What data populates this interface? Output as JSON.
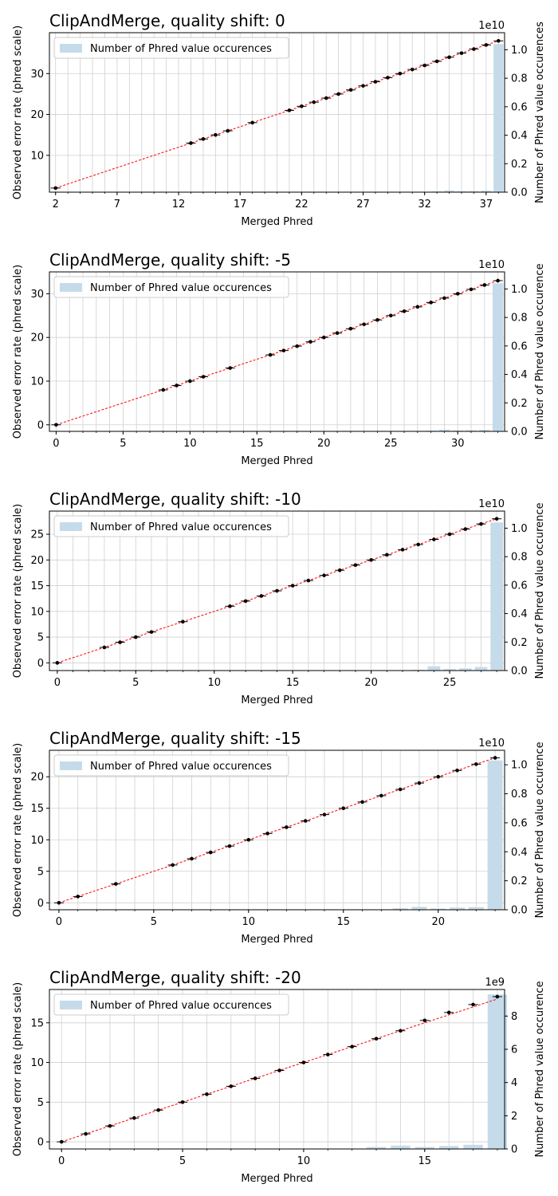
{
  "colors": {
    "bar": "#c6dbea",
    "fit_line": "#ff0000",
    "points": "#000000",
    "grid": "#d0d0d0"
  },
  "chart_data": [
    {
      "type": "bar+scatter",
      "title": "ClipAndMerge, quality shift: 0",
      "xlabel": "Merged Phred",
      "ylabel": "Observed error rate (phred scale)",
      "y2label": "Number of Phred value occurences",
      "legend": "Number of Phred value occurences",
      "legend_position": "upper-left",
      "grid": true,
      "xlim": [
        1.5,
        38.5
      ],
      "ylim": [
        1,
        40
      ],
      "y2lim": [
        0,
        1.12
      ],
      "y2_offset_text": "1e10",
      "xticks": [
        2,
        7,
        12,
        17,
        22,
        27,
        32,
        37
      ],
      "xgrid": [
        2,
        3,
        4,
        5,
        6,
        7,
        8,
        9,
        10,
        11,
        12,
        13,
        14,
        15,
        16,
        17,
        18,
        19,
        20,
        21,
        22,
        23,
        24,
        25,
        26,
        27,
        28,
        29,
        30,
        31,
        32,
        33,
        34,
        35,
        36,
        37,
        38
      ],
      "yticks": [
        10,
        20,
        30
      ],
      "y2ticks": [
        "0.0",
        "0.2",
        "0.4",
        "0.6",
        "0.8",
        "1.0"
      ],
      "points": {
        "x": [
          2,
          13,
          14,
          15,
          16,
          18,
          21,
          22,
          23,
          24,
          25,
          26,
          27,
          28,
          29,
          30,
          31,
          32,
          33,
          34,
          35,
          36,
          37,
          38
        ],
        "y": [
          2,
          13,
          14,
          15,
          16,
          18,
          21,
          22,
          23,
          24,
          25,
          26,
          27,
          28,
          29,
          30,
          31,
          32,
          33,
          34,
          35,
          36,
          37,
          38
        ]
      },
      "fit_line": [
        [
          2,
          2
        ],
        [
          38,
          38
        ]
      ],
      "bars": {
        "x": [
          33,
          34,
          35,
          36,
          37,
          38
        ],
        "values": [
          0.005,
          0.012,
          0.006,
          0.007,
          0.01,
          1.04
        ]
      }
    },
    {
      "type": "bar+scatter",
      "title": "ClipAndMerge, quality shift: -5",
      "xlabel": "Merged Phred",
      "ylabel": "Observed error rate (phred scale)",
      "y2label": "Number of Phred value occurence",
      "legend": "Number of Phred value occurences",
      "legend_position": "upper-left",
      "grid": true,
      "xlim": [
        -0.5,
        33.5
      ],
      "ylim": [
        -1.5,
        35
      ],
      "y2lim": [
        0,
        1.12
      ],
      "y2_offset_text": "1e10",
      "xticks": [
        0,
        5,
        10,
        15,
        20,
        25,
        30
      ],
      "xgrid": [
        0,
        1,
        2,
        3,
        4,
        5,
        6,
        7,
        8,
        9,
        10,
        11,
        12,
        13,
        14,
        15,
        16,
        17,
        18,
        19,
        20,
        21,
        22,
        23,
        24,
        25,
        26,
        27,
        28,
        29,
        30,
        31,
        32,
        33
      ],
      "yticks": [
        0,
        10,
        20,
        30
      ],
      "y2ticks": [
        "0.0",
        "0.2",
        "0.4",
        "0.6",
        "0.8",
        "1.0"
      ],
      "points": {
        "x": [
          0,
          8,
          9,
          10,
          11,
          13,
          16,
          17,
          18,
          19,
          20,
          21,
          22,
          23,
          24,
          25,
          26,
          27,
          28,
          29,
          30,
          31,
          32,
          33
        ],
        "y": [
          0,
          8,
          9,
          10,
          11,
          13,
          16,
          17,
          18,
          19,
          20,
          21,
          22,
          23,
          24,
          25,
          26,
          27,
          28,
          29,
          30,
          31,
          32,
          33
        ]
      },
      "fit_line": [
        [
          0,
          0
        ],
        [
          33,
          33
        ]
      ],
      "bars": {
        "x": [
          28,
          29,
          30,
          31,
          32,
          33
        ],
        "values": [
          0.005,
          0.012,
          0.006,
          0.007,
          0.01,
          1.04
        ]
      }
    },
    {
      "type": "bar+scatter",
      "title": "ClipAndMerge, quality shift: -10",
      "xlabel": "Merged Phred",
      "ylabel": "Observed error rate (phred scale)",
      "y2label": "Number of Phred value occurence",
      "legend": "Number of Phred value occurences",
      "legend_position": "upper-left",
      "grid": true,
      "xlim": [
        -0.5,
        28.5
      ],
      "ylim": [
        -1.5,
        29.5
      ],
      "y2lim": [
        0,
        1.12
      ],
      "y2_offset_text": "1e10",
      "xticks": [
        0,
        5,
        10,
        15,
        20,
        25
      ],
      "xgrid": [
        0,
        1,
        2,
        3,
        4,
        5,
        6,
        7,
        8,
        9,
        10,
        11,
        12,
        13,
        14,
        15,
        16,
        17,
        18,
        19,
        20,
        21,
        22,
        23,
        24,
        25,
        26,
        27,
        28
      ],
      "yticks": [
        0,
        5,
        10,
        15,
        20,
        25
      ],
      "y2ticks": [
        "0.0",
        "0.2",
        "0.4",
        "0.6",
        "0.8",
        "1.0"
      ],
      "points": {
        "x": [
          0,
          3,
          4,
          5,
          6,
          8,
          11,
          12,
          13,
          14,
          15,
          16,
          17,
          18,
          19,
          20,
          21,
          22,
          23,
          24,
          25,
          26,
          27,
          28
        ],
        "y": [
          0,
          3,
          4,
          5,
          6,
          8,
          11,
          12,
          13,
          14,
          15,
          16,
          17,
          18,
          19,
          20,
          21,
          22,
          23,
          24,
          25,
          26,
          27,
          28
        ]
      },
      "fit_line": [
        [
          0,
          0
        ],
        [
          28,
          28
        ]
      ],
      "bars": {
        "x": [
          23,
          24,
          25,
          26,
          27,
          28
        ],
        "values": [
          0.005,
          0.03,
          0.01,
          0.015,
          0.025,
          1.04
        ]
      }
    },
    {
      "type": "bar+scatter",
      "title": "ClipAndMerge, quality shift: -15",
      "xlabel": "Merged Phred",
      "ylabel": "Observed error rate (phred scale)",
      "y2label": "Number of Phred value occurence",
      "legend": "Number of Phred value occurences",
      "legend_position": "upper-left",
      "grid": true,
      "xlim": [
        -0.5,
        23.5
      ],
      "ylim": [
        -1.1,
        24.2
      ],
      "y2lim": [
        0,
        1.1
      ],
      "y2_offset_text": "1e10",
      "xticks": [
        0,
        5,
        10,
        15,
        20
      ],
      "xgrid": [
        0,
        1,
        2,
        3,
        4,
        5,
        6,
        7,
        8,
        9,
        10,
        11,
        12,
        13,
        14,
        15,
        16,
        17,
        18,
        19,
        20,
        21,
        22,
        23
      ],
      "yticks": [
        0,
        5,
        10,
        15,
        20
      ],
      "y2ticks": [
        "0.0",
        "0.2",
        "0.4",
        "0.6",
        "0.8",
        "1.0"
      ],
      "points": {
        "x": [
          0,
          1,
          3,
          6,
          7,
          8,
          9,
          10,
          11,
          12,
          13,
          14,
          15,
          16,
          17,
          18,
          19,
          20,
          21,
          22,
          23
        ],
        "y": [
          0,
          1,
          3,
          6,
          7,
          8,
          9,
          10,
          11,
          12,
          13,
          14,
          15,
          16,
          17,
          18,
          19,
          20,
          21,
          22,
          23
        ]
      },
      "fit_line": [
        [
          0,
          0
        ],
        [
          23,
          23
        ]
      ],
      "bars": {
        "x": [
          18,
          19,
          20,
          21,
          22,
          23
        ],
        "values": [
          0.01,
          0.02,
          0.008,
          0.015,
          0.018,
          1.03
        ]
      }
    },
    {
      "type": "bar+scatter",
      "title": "ClipAndMerge, quality shift: -20",
      "xlabel": "Merged Phred",
      "ylabel": "Observed error rate (phred scale)",
      "y2label": "Number of Phred value occurence",
      "legend": "Number of Phred value occurences",
      "legend_position": "upper-left",
      "grid": true,
      "xlim": [
        -0.5,
        18.3
      ],
      "ylim": [
        -0.9,
        19.2
      ],
      "y2lim": [
        0,
        9.6
      ],
      "y2_offset_text": "1e9",
      "xticks": [
        0,
        5,
        10,
        15
      ],
      "xgrid": [
        0,
        1,
        2,
        3,
        4,
        5,
        6,
        7,
        8,
        9,
        10,
        11,
        12,
        13,
        14,
        15,
        16,
        17,
        18
      ],
      "yticks": [
        0,
        5,
        10,
        15
      ],
      "y2ticks": [
        "0",
        "2",
        "4",
        "6",
        "8"
      ],
      "points": {
        "x": [
          0,
          1,
          2,
          3,
          4,
          5,
          6,
          7,
          8,
          9,
          10,
          11,
          12,
          13,
          14,
          15,
          16,
          17,
          18
        ],
        "y": [
          0,
          1,
          2,
          3,
          4,
          5,
          6,
          7,
          8,
          9,
          10,
          11,
          12,
          13,
          14,
          15.3,
          16.3,
          17.3,
          18.3
        ]
      },
      "fit_line": [
        [
          0,
          0
        ],
        [
          18,
          18
        ]
      ],
      "bars": {
        "x": [
          5,
          6,
          7,
          8,
          9,
          10,
          11,
          12,
          13,
          14,
          15,
          16,
          17,
          18
        ],
        "values": [
          0.02,
          0.01,
          0.01,
          0.01,
          0.01,
          0.01,
          0.01,
          0.02,
          0.12,
          0.2,
          0.12,
          0.18,
          0.25,
          9.3
        ]
      }
    }
  ]
}
